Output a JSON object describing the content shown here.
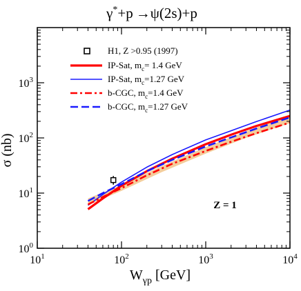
{
  "chart_data": {
    "type": "line",
    "title_parts": {
      "gamma": "γ",
      "star": "*",
      "rest": "+p",
      "arrow": "→",
      "psi": "ψ",
      "final": "(2s)+p"
    },
    "xlabel": {
      "main": "W",
      "sub": "γp",
      "unit": " [GeV]"
    },
    "ylabel": "σ (nb)",
    "x_scale": "log",
    "y_scale": "log",
    "xlim": [
      10,
      10000
    ],
    "ylim": [
      1,
      10000
    ],
    "x_ticks": [
      {
        "base": "10",
        "exp": "1",
        "value": 10
      },
      {
        "base": "10",
        "exp": "2",
        "value": 100
      },
      {
        "base": "10",
        "exp": "3",
        "value": 1000
      },
      {
        "base": "10",
        "exp": "4",
        "value": 10000
      }
    ],
    "y_ticks": [
      {
        "base": "10",
        "exp": "0",
        "value": 1
      },
      {
        "base": "10",
        "exp": "1",
        "value": 10
      },
      {
        "base": "10",
        "exp": "2",
        "value": 100
      },
      {
        "base": "10",
        "exp": "3",
        "value": 1000
      }
    ],
    "annotation": "Z = 1",
    "legend_position": "top-left",
    "band": {
      "color": "#f2c48a",
      "x": [
        40,
        100,
        300,
        1000,
        3000,
        10000
      ],
      "lower": [
        6.1,
        11,
        24,
        52,
        100,
        185
      ],
      "upper": [
        8.0,
        14,
        31,
        68,
        132,
        260
      ]
    },
    "data_points": {
      "name": "H1, Z >0.95  (1997)",
      "points": [
        {
          "x": 80,
          "y": 17.2,
          "err_low": 14.2,
          "err_high": 20.4
        }
      ]
    },
    "series": [
      {
        "name": "IP-Sat, m",
        "sub": "c",
        "suffix": "= 1.4 GeV",
        "color": "#ff0000",
        "style": "solid",
        "x": [
          40,
          60,
          100,
          200,
          400,
          1000,
          2000,
          4000,
          10000
        ],
        "y": [
          5.1,
          8.0,
          13.6,
          25,
          42,
          77,
          114,
          165,
          250
        ]
      },
      {
        "name": "IP-Sat, m",
        "sub": "c",
        "suffix": "=1.27 GeV",
        "color": "#1a1aff",
        "style": "solid",
        "x": [
          40,
          60,
          100,
          200,
          400,
          1000,
          2000,
          4000,
          10000
        ],
        "y": [
          6.0,
          9.4,
          15.8,
          29.5,
          50,
          92,
          135,
          198,
          320
        ]
      },
      {
        "name": "b-CGC, m",
        "sub": "c",
        "suffix": "=1.4 GeV",
        "color": "#ff0000",
        "style": "dashdot",
        "x": [
          40,
          60,
          100,
          200,
          400,
          1000,
          2000,
          4000,
          10000
        ],
        "y": [
          6.2,
          8.5,
          12.3,
          21,
          34,
          58,
          85,
          122,
          190
        ]
      },
      {
        "name": "b-CGC, m",
        "sub": "c",
        "suffix": "=1.27 GeV",
        "color": "#1a1aff",
        "style": "dashed",
        "x": [
          40,
          60,
          100,
          200,
          400,
          1000,
          2000,
          4000,
          10000
        ],
        "y": [
          7.2,
          10.0,
          14.5,
          25,
          40,
          70,
          102,
          148,
          235
        ]
      }
    ]
  }
}
